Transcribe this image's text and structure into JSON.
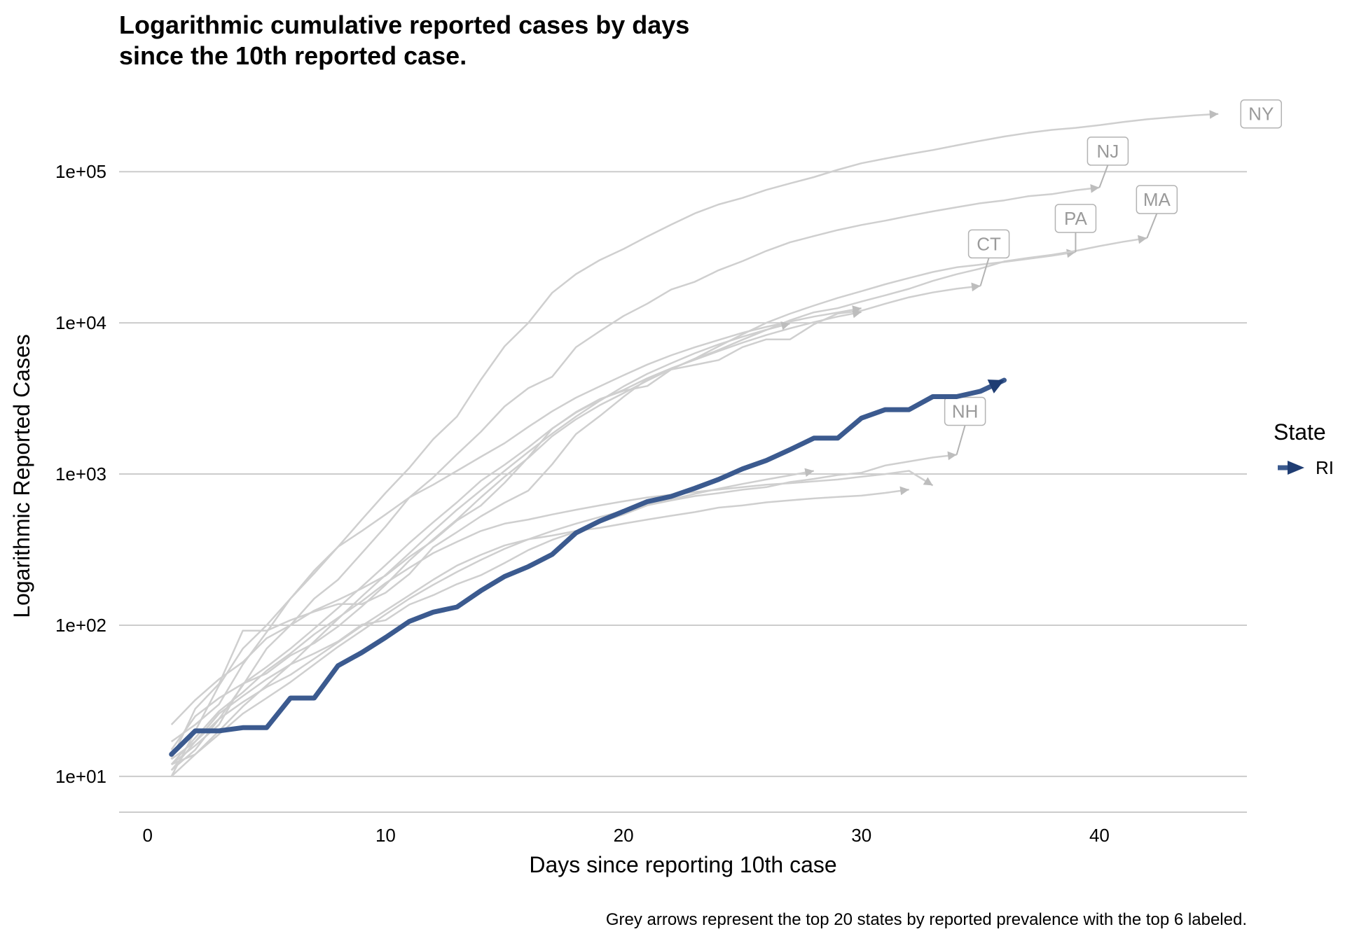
{
  "chart_data": {
    "type": "line",
    "title": "Logarithmic cumulative reported cases by days\nsince the 10th reported case.",
    "xlabel": "Days since reporting 10th case",
    "ylabel": "Logarithmic Reported Cases",
    "caption": "Grey arrows represent the top 20 states by reported prevalence with the top 6 labeled.",
    "x_scale": "linear",
    "y_scale": "log10",
    "xlim": [
      -1.2,
      46.2
    ],
    "ylim": [
      5.8,
      380000
    ],
    "x_ticks": [
      0,
      10,
      20,
      30,
      40
    ],
    "x_tick_labels": [
      "0",
      "10",
      "20",
      "30",
      "40"
    ],
    "y_ticks": [
      10,
      100,
      1000,
      10000,
      100000
    ],
    "y_tick_labels": [
      "1e+01",
      "1e+02",
      "1e+03",
      "1e+04",
      "1e+05"
    ],
    "grid": "horizontal major",
    "legend": {
      "title": "State",
      "placement": "right",
      "entries": [
        "RI"
      ]
    },
    "colors": {
      "highlight": "#3b5a8f",
      "highlight_head": "#1f3d73",
      "grey": "#cfcfcf",
      "label_text": "#9a9a9a",
      "label_border": "#b3b3b3",
      "grid": "#cccccc"
    },
    "highlight_series": {
      "name": "RI",
      "x": [
        1,
        2,
        3,
        4,
        5,
        6,
        7,
        8,
        9,
        10,
        11,
        12,
        13,
        14,
        15,
        16,
        17,
        18,
        19,
        20,
        21,
        22,
        23,
        24,
        25,
        26,
        27,
        28,
        29,
        30,
        31,
        32,
        33,
        34,
        35,
        36
      ],
      "y": [
        14,
        20,
        20,
        21,
        21,
        33,
        33,
        54,
        66,
        83,
        106,
        122,
        132,
        169,
        210,
        244,
        294,
        408,
        488,
        566,
        657,
        711,
        806,
        922,
        1082,
        1229,
        1450,
        1727,
        1727,
        2342,
        2665,
        2665,
        3251,
        3251,
        3529,
        4177
      ]
    },
    "series": [
      {
        "name": "NY",
        "x": [
          1,
          2,
          3,
          4,
          5,
          6,
          7,
          8,
          9,
          10,
          11,
          12,
          13,
          14,
          15,
          16,
          17,
          18,
          19,
          20,
          21,
          22,
          23,
          24,
          25,
          26,
          27,
          28,
          29,
          30,
          31,
          32,
          33,
          34,
          35,
          36,
          37,
          38,
          39,
          40,
          41,
          42,
          43,
          44,
          45
        ],
        "y": [
          10,
          20,
          40,
          70,
          100,
          150,
          220,
          330,
          500,
          750,
          1100,
          1700,
          2400,
          4200,
          7000,
          10000,
          15800,
          21000,
          26000,
          30800,
          37300,
          44600,
          53000,
          60700,
          67000,
          75800,
          83700,
          92000,
          102900,
          113700,
          122000,
          130700,
          139000,
          149300,
          160000,
          170800,
          180500,
          189000,
          195000,
          203000,
          213000,
          222000,
          229000,
          236000,
          241000
        ]
      },
      {
        "name": "NJ",
        "x": [
          1,
          2,
          3,
          4,
          5,
          6,
          7,
          8,
          9,
          10,
          11,
          12,
          13,
          14,
          15,
          16,
          17,
          18,
          19,
          20,
          21,
          22,
          23,
          24,
          25,
          26,
          27,
          28,
          29,
          30,
          31,
          32,
          33,
          34,
          35,
          36,
          37,
          38,
          39,
          40
        ],
        "y": [
          11,
          15,
          24,
          40,
          70,
          100,
          150,
          200,
          300,
          450,
          700,
          950,
          1350,
          1900,
          2800,
          3700,
          4400,
          6900,
          8800,
          11100,
          13400,
          16600,
          18700,
          22300,
          25600,
          29900,
          34100,
          37500,
          41100,
          44400,
          47400,
          51000,
          54600,
          58200,
          61900,
          64600,
          68800,
          71000,
          75300,
          78500
        ]
      },
      {
        "name": "PA",
        "x": [
          1,
          2,
          3,
          4,
          5,
          6,
          7,
          8,
          9,
          10,
          11,
          12,
          13,
          14,
          15,
          16,
          17,
          18,
          19,
          20,
          21,
          22,
          23,
          24,
          25,
          26,
          27,
          28,
          29,
          30,
          31,
          32,
          33,
          34,
          35,
          36,
          37,
          38,
          39
        ],
        "y": [
          12,
          16,
          22,
          41,
          48,
          63,
          76,
          98,
          133,
          185,
          268,
          370,
          500,
          700,
          960,
          1280,
          1780,
          2300,
          2850,
          3430,
          4150,
          4950,
          5800,
          7000,
          8400,
          10000,
          11500,
          13000,
          14600,
          16200,
          18000,
          19800,
          21700,
          23300,
          24300,
          25300,
          26500,
          27800,
          29400
        ]
      },
      {
        "name": "MA",
        "x": [
          1,
          2,
          3,
          4,
          5,
          6,
          7,
          8,
          9,
          10,
          11,
          12,
          13,
          14,
          15,
          16,
          17,
          18,
          19,
          20,
          21,
          22,
          23,
          24,
          25,
          26,
          27,
          28,
          29,
          30,
          31,
          32,
          33,
          34,
          35,
          36,
          37,
          38,
          39,
          40,
          41,
          42
        ],
        "y": [
          13,
          28,
          41,
          92,
          92,
          108,
          123,
          138,
          138,
          164,
          218,
          328,
          413,
          525,
          646,
          777,
          1159,
          1838,
          2417,
          3240,
          4257,
          4955,
          5752,
          6620,
          7738,
          8966,
          10402,
          11736,
          12500,
          13837,
          15202,
          16790,
          18941,
          20974,
          22860,
          25475,
          26867,
          28163,
          29918,
          32181,
          34402,
          36372
        ]
      },
      {
        "name": "CT",
        "x": [
          1,
          2,
          3,
          4,
          5,
          6,
          7,
          8,
          9,
          10,
          11,
          12,
          13,
          14,
          15,
          16,
          17,
          18,
          19,
          20,
          21,
          22,
          23,
          24,
          25,
          26,
          27,
          28,
          29,
          30,
          31,
          32,
          33,
          34,
          35
        ],
        "y": [
          22,
          32,
          44,
          57,
          82,
          100,
          125,
          147,
          175,
          213,
          283,
          363,
          493,
          618,
          875,
          1291,
          1993,
          2571,
          3128,
          3557,
          3824,
          4914,
          5276,
          5675,
          6906,
          7781,
          7781,
          9784,
          11510,
          12035,
          13381,
          14755,
          15884,
          16809,
          17550
        ]
      },
      {
        "name": "NH",
        "x": [
          1,
          2,
          3,
          4,
          5,
          6,
          7,
          8,
          9,
          10,
          11,
          12,
          13,
          14,
          15,
          16,
          17,
          18,
          19,
          20,
          21,
          22,
          23,
          24,
          25,
          26,
          27,
          28,
          29,
          30,
          31,
          32,
          33,
          34
        ],
        "y": [
          13,
          17,
          26,
          34,
          44,
          55,
          65,
          78,
          101,
          108,
          137,
          158,
          187,
          214,
          258,
          314,
          367,
          415,
          479,
          540,
          621,
          669,
          715,
          747,
          788,
          819,
          885,
          929,
          985,
          1020,
          1139,
          1211,
          1287,
          1342
        ]
      },
      {
        "name": "",
        "x": [
          1,
          2,
          3,
          4,
          5,
          6,
          7,
          8,
          9,
          10,
          11,
          12,
          13,
          14,
          15,
          16,
          17,
          18,
          19,
          20,
          21,
          22,
          23,
          24,
          25,
          26,
          27,
          28,
          29,
          30,
          31,
          32,
          33
        ],
        "y": [
          12,
          18,
          27,
          36,
          50,
          65,
          87,
          112,
          144,
          190,
          240,
          300,
          356,
          420,
          470,
          500,
          540,
          580,
          620,
          660,
          700,
          730,
          760,
          790,
          820,
          850,
          870,
          895,
          920,
          960,
          1000,
          1050,
          840
        ]
      },
      {
        "name": "",
        "x": [
          1,
          2,
          3,
          4,
          5,
          6,
          7,
          8,
          9,
          10,
          11,
          12,
          13,
          14,
          15,
          16,
          17,
          18,
          19,
          20,
          21,
          22,
          23,
          24,
          25,
          26,
          27,
          28,
          29,
          30,
          31,
          32
        ],
        "y": [
          11,
          17,
          24,
          31,
          39,
          47,
          60,
          77,
          99,
          125,
          158,
          200,
          248,
          292,
          337,
          370,
          392,
          420,
          440,
          470,
          500,
          530,
          560,
          600,
          620,
          650,
          670,
          690,
          705,
          720,
          750,
          790
        ]
      },
      {
        "name": "",
        "x": [
          1,
          2,
          3,
          4,
          5,
          6,
          7,
          8,
          9,
          10,
          11,
          12,
          13,
          14,
          15,
          16,
          17,
          18,
          19,
          20,
          21,
          22,
          23,
          24,
          25,
          26,
          27,
          28,
          29,
          30
        ],
        "y": [
          15,
          25,
          33,
          41,
          53,
          70,
          95,
          130,
          180,
          250,
          350,
          480,
          650,
          900,
          1150,
          1500,
          2000,
          2550,
          3100,
          3600,
          4300,
          5000,
          5700,
          6500,
          7400,
          8300,
          9200,
          10100,
          11000,
          11800
        ]
      },
      {
        "name": "",
        "x": [
          1,
          2,
          3,
          4,
          5,
          6,
          7,
          8,
          9,
          10,
          11,
          12,
          13,
          14,
          15,
          16,
          17,
          18,
          19,
          20,
          21,
          22,
          23,
          24,
          25,
          26,
          27,
          28,
          29,
          30
        ],
        "y": [
          17,
          22,
          30,
          55,
          90,
          150,
          230,
          330,
          420,
          540,
          700,
          850,
          1050,
          1300,
          1600,
          2050,
          2600,
          3200,
          3800,
          4500,
          5300,
          6100,
          6900,
          7700,
          8600,
          9400,
          10200,
          11000,
          11700,
          12500
        ]
      },
      {
        "name": "",
        "x": [
          1,
          2,
          3,
          4,
          5,
          6,
          7,
          8,
          9,
          10,
          11,
          12,
          13,
          14,
          15,
          16,
          17,
          18,
          19,
          20,
          21,
          22,
          23,
          24,
          25,
          26,
          27,
          28
        ],
        "y": [
          12,
          14,
          19,
          26,
          33,
          42,
          55,
          72,
          92,
          118,
          150,
          185,
          225,
          270,
          320,
          370,
          420,
          470,
          520,
          570,
          630,
          680,
          740,
          800,
          860,
          920,
          980,
          1050
        ]
      },
      {
        "name": "",
        "x": [
          1,
          2,
          3,
          4,
          5,
          6,
          7,
          8,
          9,
          10,
          11,
          12,
          13,
          14,
          15,
          16,
          17,
          18,
          19,
          20,
          21,
          22,
          23,
          24,
          25,
          26,
          27
        ],
        "y": [
          10,
          14,
          20,
          29,
          40,
          55,
          78,
          110,
          155,
          215,
          300,
          420,
          580,
          780,
          1050,
          1400,
          1850,
          2400,
          3050,
          3800,
          4600,
          5400,
          6300,
          7200,
          8100,
          9000,
          9900
        ]
      }
    ],
    "labeled_states": [
      "NY",
      "NJ",
      "MA",
      "PA",
      "CT",
      "NH"
    ]
  }
}
